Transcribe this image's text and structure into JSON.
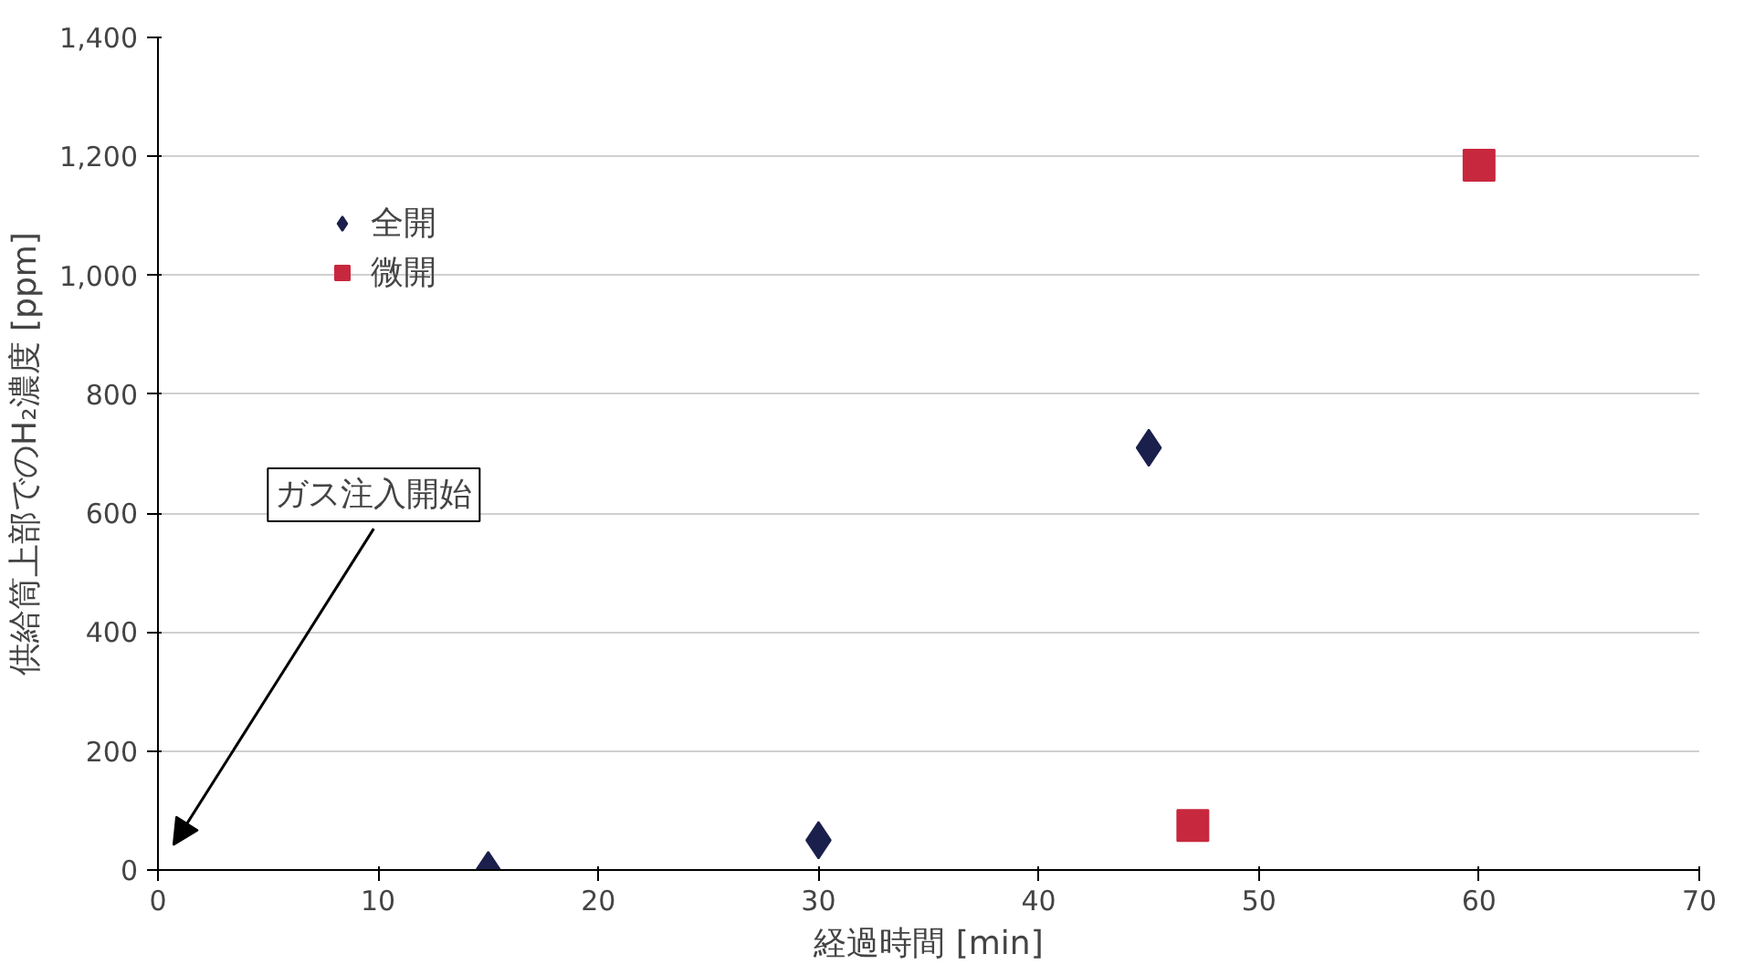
{
  "chart_data": {
    "type": "scatter",
    "xlabel": "経過時間 [min]",
    "ylabel": "供給筒上部でのH₂濃度 [ppm]",
    "xlim": [
      0,
      70
    ],
    "ylim": [
      0,
      1400
    ],
    "xticks": [
      0,
      10,
      20,
      30,
      40,
      50,
      60,
      70
    ],
    "yticks": [
      0,
      200,
      400,
      600,
      800,
      {
        "value": 1000,
        "label": "1,000"
      },
      {
        "value": 1200,
        "label": "1,200"
      },
      {
        "value": 1400,
        "label": "1,400"
      }
    ],
    "grid": "y",
    "legend": "top left",
    "series": [
      {
        "name": "全開",
        "color": "#1b1f4b",
        "marker": "diamond",
        "x": [
          15,
          30,
          45
        ],
        "values": [
          0,
          50,
          710
        ]
      },
      {
        "name": "微開",
        "color": "#c8283e",
        "marker": "square",
        "x": [
          47,
          60
        ],
        "values": [
          75,
          1185
        ]
      }
    ],
    "annotations": [
      "ガス注入開始"
    ]
  }
}
